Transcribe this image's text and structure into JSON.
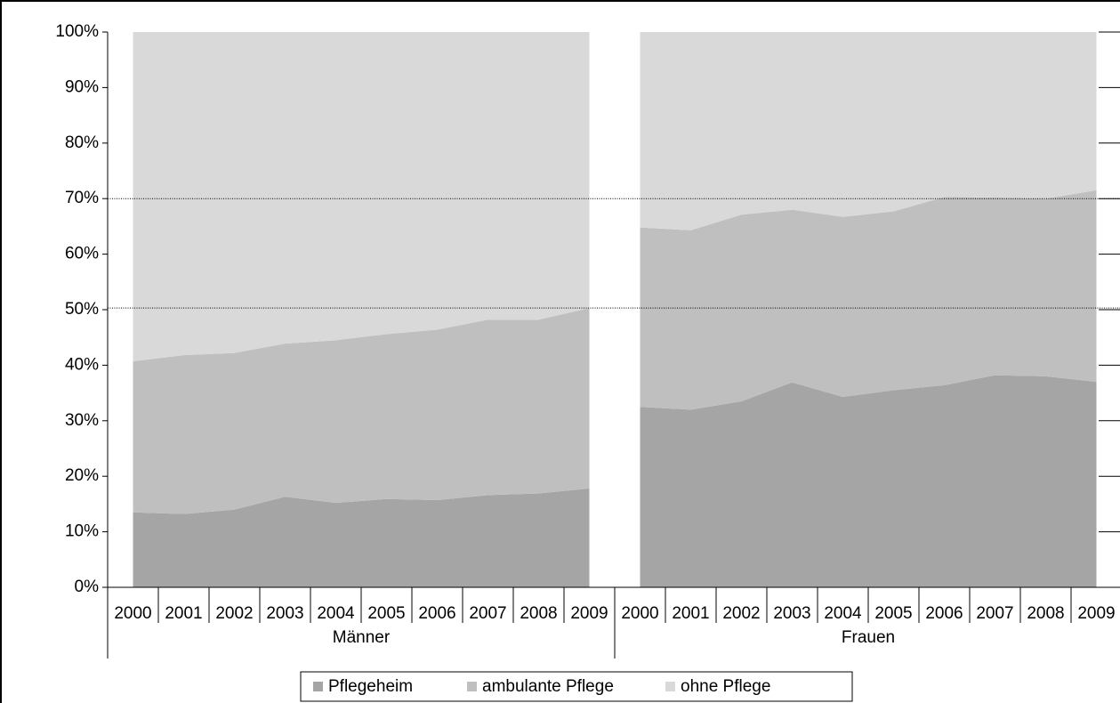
{
  "chart_data": {
    "type": "stacked-area-100",
    "groups": [
      {
        "name": "Männer",
        "categories": [
          "2000",
          "2001",
          "2002",
          "2003",
          "2004",
          "2005",
          "2006",
          "2007",
          "2008",
          "2009"
        ]
      },
      {
        "name": "Frauen",
        "categories": [
          "2000",
          "2001",
          "2002",
          "2003",
          "2004",
          "2005",
          "2006",
          "2007",
          "2008",
          "2009"
        ]
      }
    ],
    "series": [
      {
        "name": "Pflegeheim",
        "color": "#a5a5a5",
        "values": [
          [
            13.5,
            13.2,
            14.0,
            16.3,
            15.2,
            15.9,
            15.7,
            16.6,
            16.9,
            17.8
          ],
          [
            32.5,
            32.0,
            33.5,
            36.9,
            34.3,
            35.5,
            36.4,
            38.2,
            38.0,
            37.0
          ]
        ]
      },
      {
        "name": "ambulante Pflege",
        "color": "#bfbfbf",
        "values": [
          [
            27.2,
            28.6,
            28.2,
            27.6,
            29.3,
            29.7,
            30.7,
            31.6,
            31.3,
            32.5
          ],
          [
            32.3,
            32.3,
            33.6,
            31.1,
            32.4,
            32.2,
            33.9,
            32.0,
            32.0,
            34.5
          ]
        ]
      },
      {
        "name": "ohne Pflege",
        "color": "#d9d9d9",
        "values": [
          [
            59.3,
            58.2,
            57.8,
            56.1,
            55.5,
            54.4,
            53.6,
            51.8,
            51.8,
            49.7
          ],
          [
            35.2,
            35.7,
            32.9,
            32.0,
            33.3,
            32.3,
            29.7,
            29.8,
            30.0,
            28.5
          ]
        ]
      }
    ],
    "ylim": [
      0,
      100
    ],
    "yticks": [
      {
        "value": 0,
        "label": "0%"
      },
      {
        "value": 10,
        "label": "10%"
      },
      {
        "value": 20,
        "label": "20%"
      },
      {
        "value": 30,
        "label": "30%"
      },
      {
        "value": 40,
        "label": "40%"
      },
      {
        "value": 50,
        "label": "50%"
      },
      {
        "value": 60,
        "label": "60%"
      },
      {
        "value": 70,
        "label": "70%"
      },
      {
        "value": 80,
        "label": "80%"
      },
      {
        "value": 90,
        "label": "90%"
      },
      {
        "value": 100,
        "label": "100%"
      }
    ],
    "reference_lines": [
      70,
      50.3
    ],
    "legend": "bottom"
  }
}
